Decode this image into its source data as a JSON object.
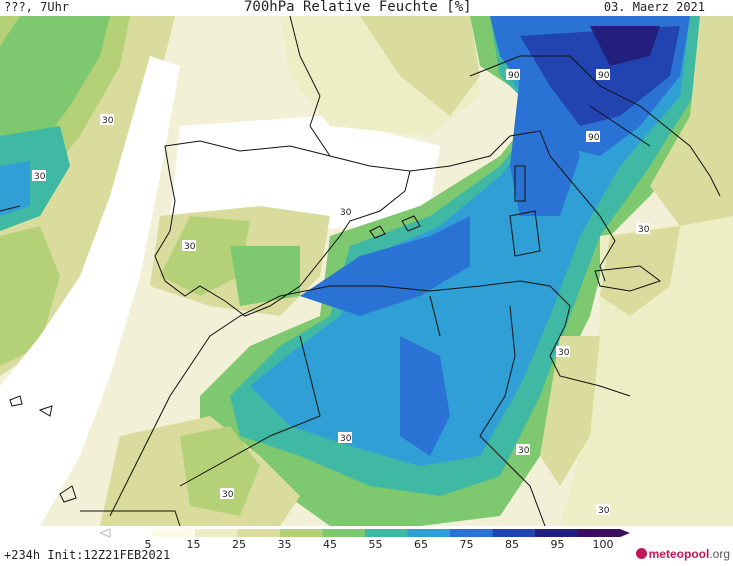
{
  "header": {
    "left": "???, 7Uhr",
    "title": "700hPa Relative Feuchte [%]",
    "date": "03. Maerz 2021"
  },
  "map": {
    "contour_labels": [
      "30",
      "30",
      "30",
      "30",
      "30",
      "30",
      "30",
      "30",
      "30",
      "30",
      "90",
      "90",
      "90"
    ]
  },
  "legend": {
    "ticks": [
      "5",
      "15",
      "25",
      "35",
      "45",
      "55",
      "65",
      "75",
      "85",
      "95",
      "100"
    ],
    "colors": [
      "#ffffff",
      "#fbfbe6",
      "#eeeec6",
      "#d9dc9c",
      "#b5d178",
      "#7ec86f",
      "#3fb8a4",
      "#2f9fd5",
      "#2a72d4",
      "#2244b0",
      "#231f7e",
      "#3a0d5e"
    ]
  },
  "footer": {
    "init": "+234h  Init:12Z21FEB2021",
    "logo_main": "meteopool",
    "logo_suffix": ".org"
  }
}
